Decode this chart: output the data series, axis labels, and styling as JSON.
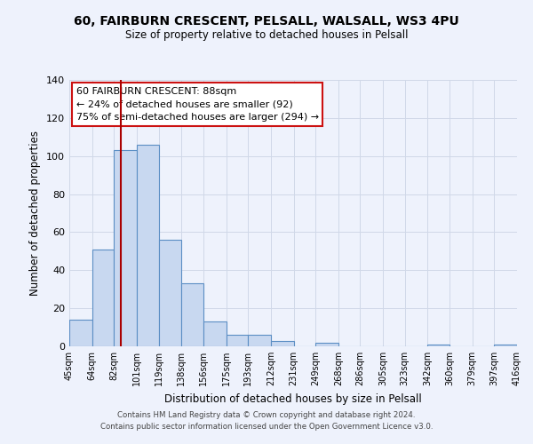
{
  "title1": "60, FAIRBURN CRESCENT, PELSALL, WALSALL, WS3 4PU",
  "title2": "Size of property relative to detached houses in Pelsall",
  "xlabel": "Distribution of detached houses by size in Pelsall",
  "ylabel": "Number of detached properties",
  "bin_edges": [
    45,
    64,
    82,
    101,
    119,
    138,
    156,
    175,
    193,
    212,
    231,
    249,
    268,
    286,
    305,
    323,
    342,
    360,
    379,
    397,
    416
  ],
  "bin_labels": [
    "45sqm",
    "64sqm",
    "82sqm",
    "101sqm",
    "119sqm",
    "138sqm",
    "156sqm",
    "175sqm",
    "193sqm",
    "212sqm",
    "231sqm",
    "249sqm",
    "268sqm",
    "286sqm",
    "305sqm",
    "323sqm",
    "342sqm",
    "360sqm",
    "379sqm",
    "397sqm",
    "416sqm"
  ],
  "counts": [
    14,
    51,
    103,
    106,
    56,
    33,
    13,
    6,
    6,
    3,
    0,
    2,
    0,
    0,
    0,
    0,
    1,
    0,
    0,
    1,
    0
  ],
  "bar_color": "#c8d8f0",
  "bar_edge_color": "#5b8ec4",
  "vline_x": 88,
  "vline_color": "#aa0000",
  "ylim": [
    0,
    140
  ],
  "yticks": [
    0,
    20,
    40,
    60,
    80,
    100,
    120,
    140
  ],
  "annotation_title": "60 FAIRBURN CRESCENT: 88sqm",
  "annotation_line1": "← 24% of detached houses are smaller (92)",
  "annotation_line2": "75% of semi-detached houses are larger (294) →",
  "footer1": "Contains HM Land Registry data © Crown copyright and database right 2024.",
  "footer2": "Contains public sector information licensed under the Open Government Licence v3.0.",
  "background_color": "#eef2fc",
  "plot_bg_color": "#eef2fc",
  "grid_color": "#d0d8e8"
}
